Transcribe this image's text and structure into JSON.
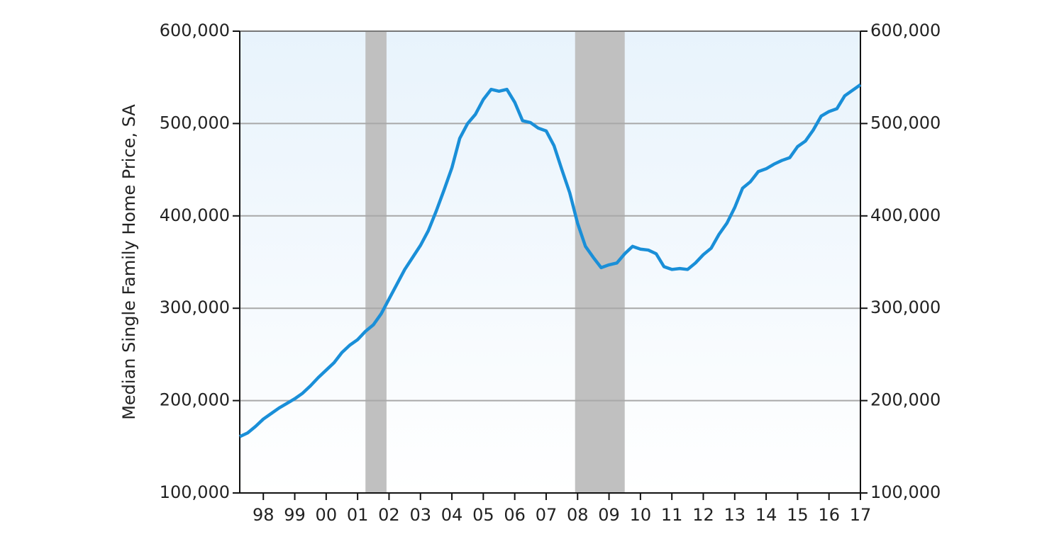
{
  "chart_data": {
    "type": "line",
    "y_label": "Median Single Family Home Price, SA",
    "xlim": [
      1997.25,
      2017.0
    ],
    "xticks": [
      {
        "value": 1998,
        "label": "98"
      },
      {
        "value": 1999,
        "label": "99"
      },
      {
        "value": 2000,
        "label": "00"
      },
      {
        "value": 2001,
        "label": "01"
      },
      {
        "value": 2002,
        "label": "02"
      },
      {
        "value": 2003,
        "label": "03"
      },
      {
        "value": 2004,
        "label": "04"
      },
      {
        "value": 2005,
        "label": "05"
      },
      {
        "value": 2006,
        "label": "06"
      },
      {
        "value": 2007,
        "label": "07"
      },
      {
        "value": 2008,
        "label": "08"
      },
      {
        "value": 2009,
        "label": "09"
      },
      {
        "value": 2010,
        "label": "10"
      },
      {
        "value": 2011,
        "label": "11"
      },
      {
        "value": 2012,
        "label": "12"
      },
      {
        "value": 2013,
        "label": "13"
      },
      {
        "value": 2014,
        "label": "14"
      },
      {
        "value": 2015,
        "label": "15"
      },
      {
        "value": 2016,
        "label": "16"
      },
      {
        "value": 2017,
        "label": "17"
      }
    ],
    "ylim": [
      100000,
      600000
    ],
    "yticks": [
      {
        "value": 100000,
        "label": "100,000"
      },
      {
        "value": 200000,
        "label": "200,000"
      },
      {
        "value": 300000,
        "label": "300,000"
      },
      {
        "value": 400000,
        "label": "400,000"
      },
      {
        "value": 500000,
        "label": "500,000"
      },
      {
        "value": 600000,
        "label": "600,000"
      }
    ],
    "y2lim": [
      100000,
      600000
    ],
    "y2ticks": [
      {
        "value": 100000,
        "label": "100,000"
      },
      {
        "value": 200000,
        "label": "200,000"
      },
      {
        "value": 300000,
        "label": "300,000"
      },
      {
        "value": 400000,
        "label": "400,000"
      },
      {
        "value": 500000,
        "label": "500,000"
      },
      {
        "value": 600000,
        "label": "600,000"
      }
    ],
    "grid": true,
    "recessions": [
      {
        "start": 2001.25,
        "end": 2001.92
      },
      {
        "start": 2007.92,
        "end": 2009.5
      }
    ],
    "recession_color": "#c0c0c0",
    "x": [
      1997.25,
      1997.5,
      1997.75,
      1998.0,
      1998.25,
      1998.5,
      1998.75,
      1999.0,
      1999.25,
      1999.5,
      1999.75,
      2000.0,
      2000.25,
      2000.5,
      2000.75,
      2001.0,
      2001.25,
      2001.5,
      2001.75,
      2002.0,
      2002.25,
      2002.5,
      2002.75,
      2003.0,
      2003.25,
      2003.5,
      2003.75,
      2004.0,
      2004.25,
      2004.5,
      2004.75,
      2005.0,
      2005.25,
      2005.5,
      2005.75,
      2006.0,
      2006.25,
      2006.5,
      2006.75,
      2007.0,
      2007.25,
      2007.5,
      2007.75,
      2008.0,
      2008.25,
      2008.5,
      2008.75,
      2009.0,
      2009.25,
      2009.5,
      2009.75,
      2010.0,
      2010.25,
      2010.5,
      2010.75,
      2011.0,
      2011.25,
      2011.5,
      2011.75,
      2012.0,
      2012.25,
      2012.5,
      2012.75,
      2013.0,
      2013.25,
      2013.5,
      2013.75,
      2014.0,
      2014.25,
      2014.5,
      2014.75,
      2015.0,
      2015.25,
      2015.5,
      2015.75,
      2016.0,
      2016.25,
      2016.5,
      2016.75,
      2017.0
    ],
    "series": [
      {
        "color": "#1a8fd8",
        "values": [
          161000,
          165000,
          172000,
          180000,
          186000,
          192000,
          197000,
          202000,
          208000,
          216000,
          225000,
          233000,
          241000,
          252000,
          260000,
          266000,
          275000,
          282000,
          294000,
          310000,
          326000,
          342000,
          355000,
          368000,
          384000,
          405000,
          428000,
          452000,
          484000,
          500000,
          510000,
          526000,
          537000,
          535000,
          537000,
          523000,
          503000,
          501000,
          495000,
          492000,
          476000,
          450000,
          425000,
          392000,
          367000,
          355000,
          344000,
          347000,
          349000,
          359000,
          367000,
          364000,
          363000,
          359000,
          345000,
          342000,
          343000,
          342000,
          349000,
          358000,
          365000,
          380000,
          392000,
          409000,
          430000,
          437000,
          448000,
          451000,
          456000,
          460000,
          463000,
          475000,
          481000,
          493000,
          508000,
          513000,
          516000,
          530000,
          536000,
          542000
        ]
      }
    ]
  }
}
